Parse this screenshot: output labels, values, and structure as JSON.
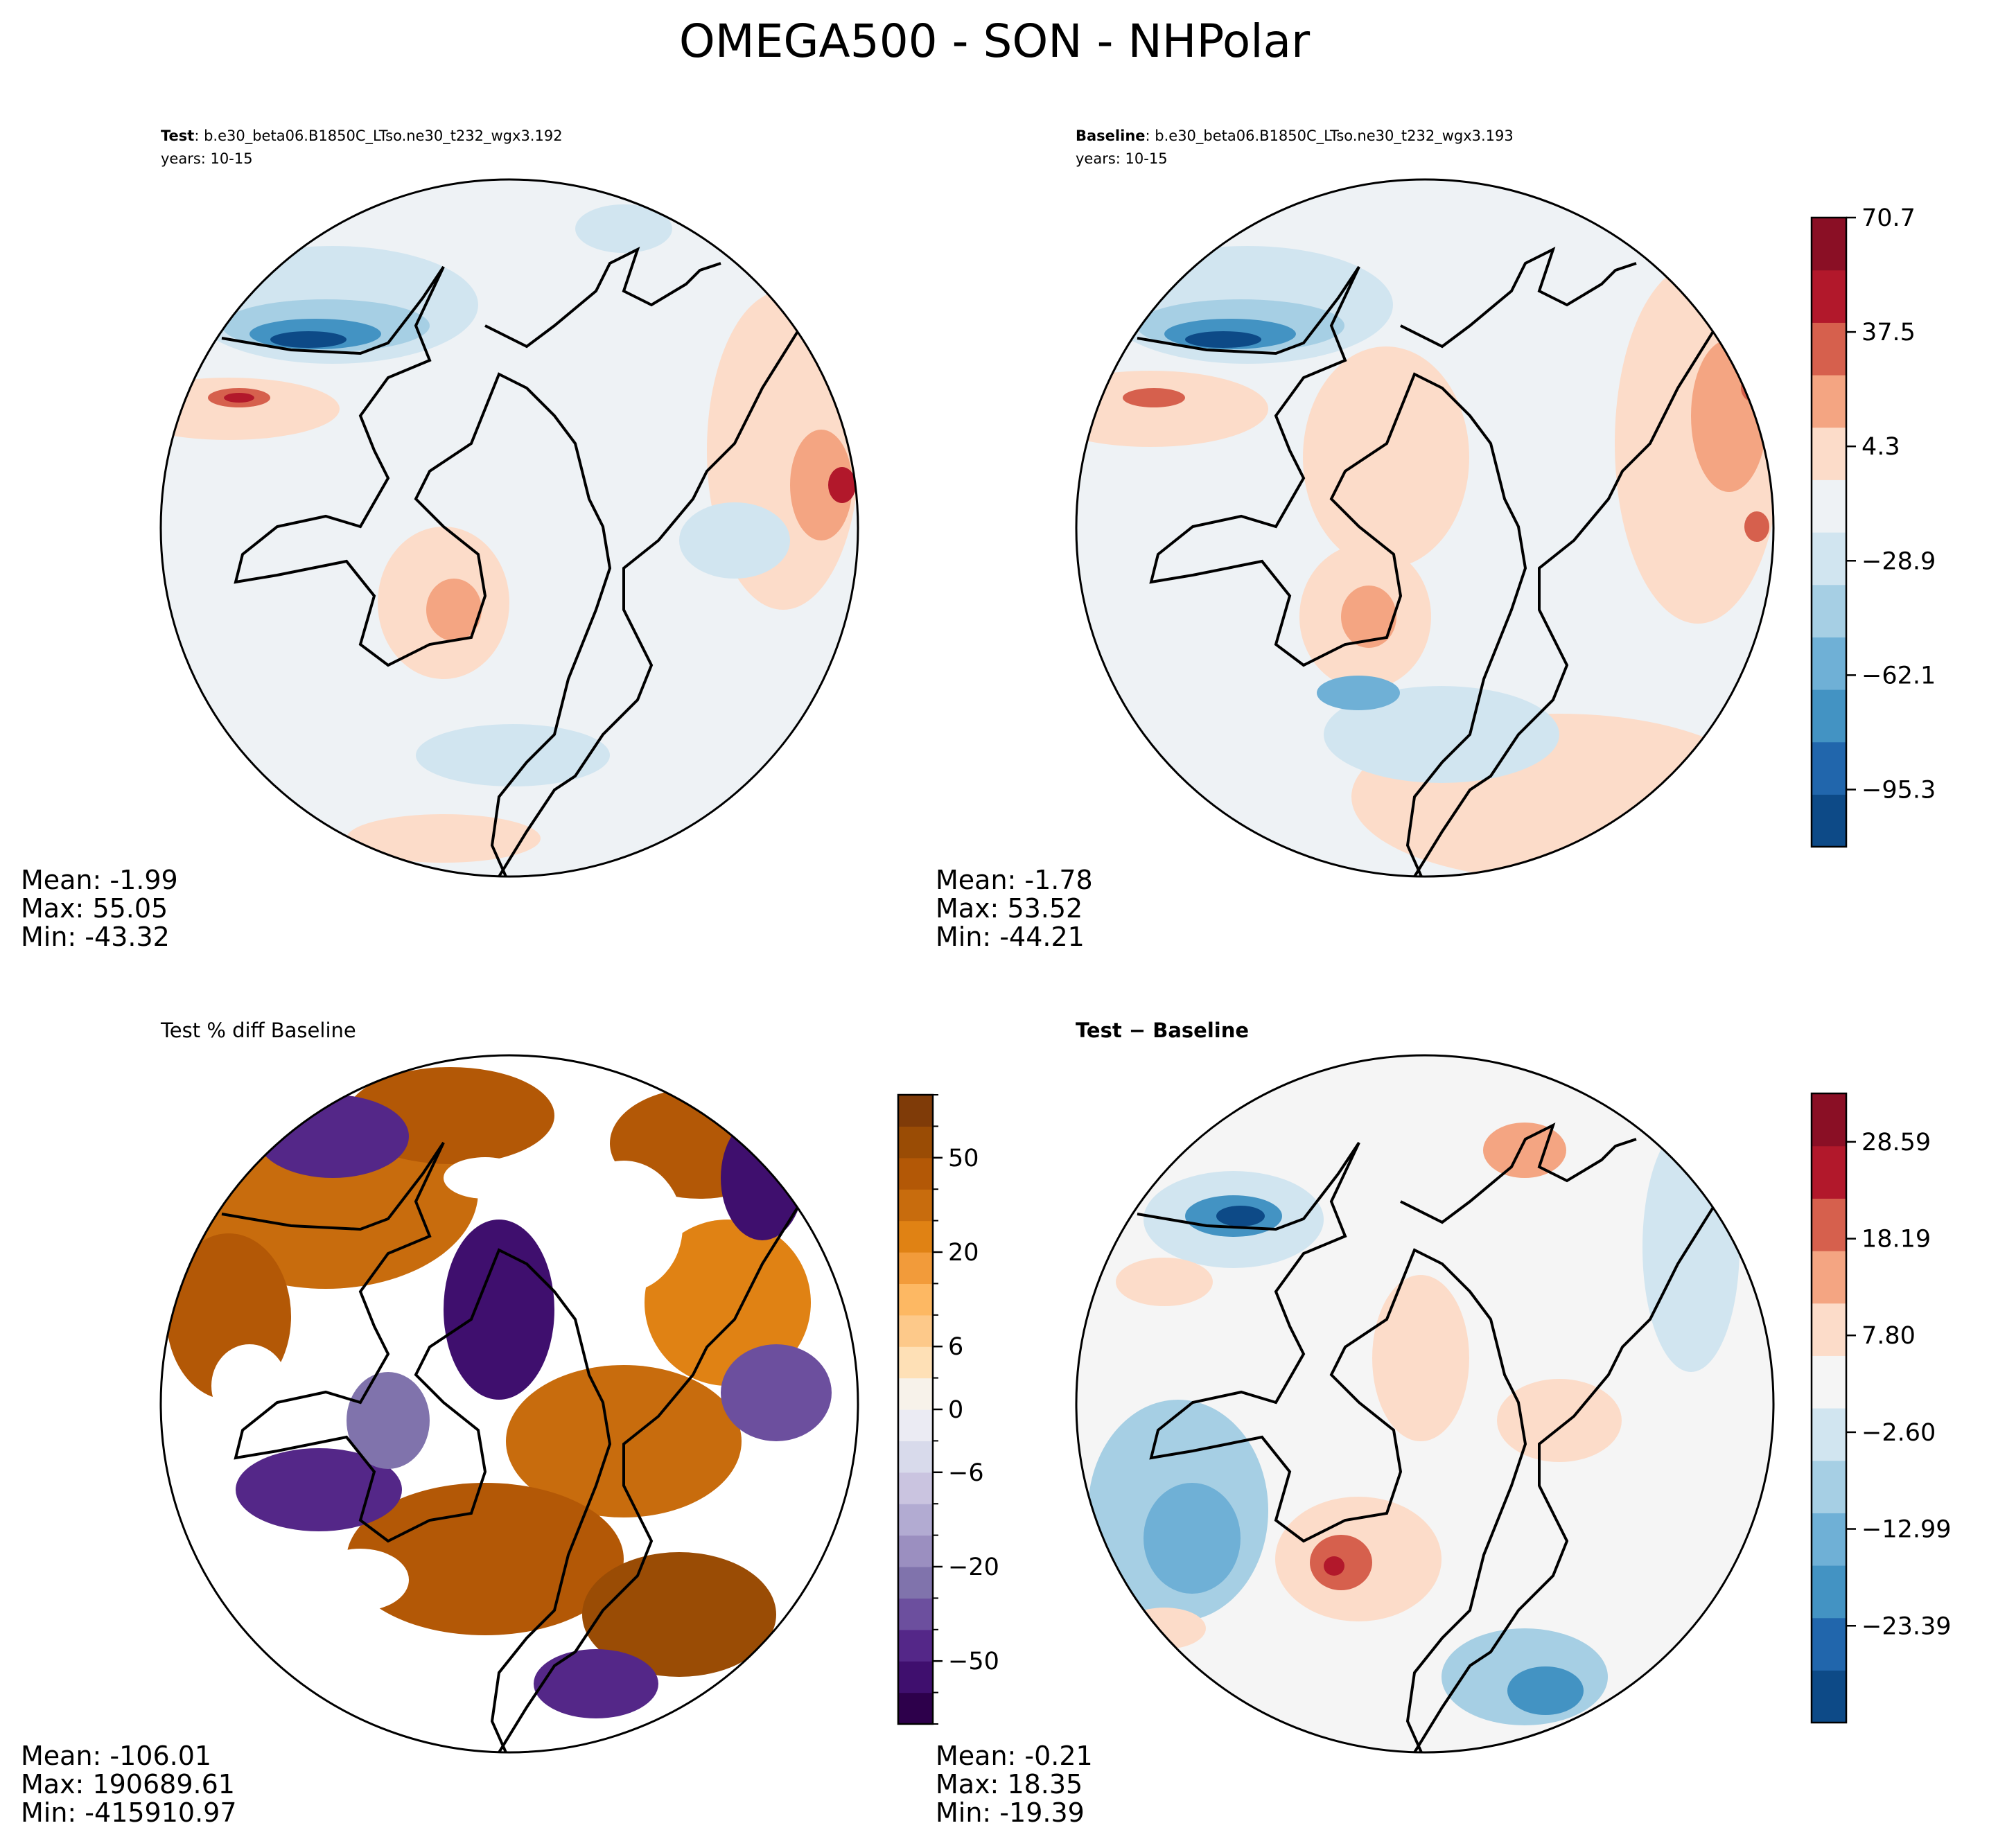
{
  "figure": {
    "title": "OMEGA500 - SON - NHPolar"
  },
  "panels": [
    {
      "id": "test",
      "title_bold": "Test",
      "title_rest": ": b.e30_beta06.B1850C_LTso.ne30_t232_wgx3.192",
      "subtitle": "years: 10-15",
      "stats": {
        "mean": "Mean: -1.99",
        "max": "Max: 55.05",
        "min": "Min: -43.32"
      },
      "palette": "RdBu_r"
    },
    {
      "id": "baseline",
      "title_bold": "Baseline",
      "title_rest": ": b.e30_beta06.B1850C_LTso.ne30_t232_wgx3.193",
      "subtitle": "years: 10-15",
      "stats": {
        "mean": "Mean: -1.78",
        "max": "Max: 53.52",
        "min": "Min: -44.21"
      },
      "palette": "RdBu_r"
    },
    {
      "id": "pctdiff",
      "title_plain": "Test % diff Baseline",
      "stats": {
        "mean": "Mean: -106.01",
        "max": "Max: 190689.61",
        "min": "Min: -415910.97"
      },
      "palette": "PuOr_r"
    },
    {
      "id": "diff",
      "title_bold": "Test − Baseline",
      "stats": {
        "mean": "Mean: -0.21",
        "max": "Max: 18.35",
        "min": "Min: -19.39"
      },
      "palette": "RdBu_r"
    }
  ],
  "chart_data": [
    {
      "type": "heatmap",
      "title": "Test",
      "projection": "north polar stereographic",
      "stats": {
        "mean": -1.99,
        "max": 55.05,
        "min": -43.32
      }
    },
    {
      "type": "heatmap",
      "title": "Baseline",
      "projection": "north polar stereographic",
      "stats": {
        "mean": -1.78,
        "max": 53.52,
        "min": -44.21
      },
      "colorbar": {
        "levels_count": 12,
        "range": [
          -111.9,
          70.7
        ],
        "tick_values": [
          70.7,
          37.5,
          4.3,
          -28.9,
          -62.1,
          -95.3
        ],
        "tick_labels": [
          "70.7",
          "37.5",
          "4.3",
          "−28.9",
          "−62.1",
          "−95.3"
        ],
        "colors": [
          "#0d4a87",
          "#2166ac",
          "#4393c3",
          "#6fb0d6",
          "#a6cfe4",
          "#d1e5f0",
          "#eef2f5",
          "#fcdcc9",
          "#f4a582",
          "#d6604d",
          "#b2182b",
          "#8a0f25"
        ]
      }
    },
    {
      "type": "heatmap",
      "title": "Test % diff Baseline",
      "projection": "north polar stereographic",
      "stats": {
        "mean": -106.01,
        "max": 190689.61,
        "min": -415910.97
      },
      "colorbar": {
        "levels_count": 20,
        "tick_values": [
          50,
          20,
          6,
          0,
          -6,
          -20,
          -50
        ],
        "tick_labels": [
          "50",
          "20",
          "6",
          "0",
          "−6",
          "−20",
          "−50"
        ],
        "colors": [
          "#2d004b",
          "#3f0f6e",
          "#542788",
          "#6c4f9e",
          "#8073ac",
          "#9b8fc0",
          "#b2abd2",
          "#cac4e0",
          "#d8daeb",
          "#ebebf3",
          "#f7f2ea",
          "#fee0b6",
          "#fdc98a",
          "#fdb863",
          "#f29b3a",
          "#e08214",
          "#c86c0d",
          "#b35806",
          "#9a4c05",
          "#7f3b08"
        ]
      }
    },
    {
      "type": "heatmap",
      "title": "Test − Baseline",
      "projection": "north polar stereographic",
      "stats": {
        "mean": -0.21,
        "max": 18.35,
        "min": -19.39
      },
      "colorbar": {
        "levels_count": 12,
        "range": [
          -33.79,
          33.79
        ],
        "tick_values": [
          28.59,
          18.19,
          7.8,
          -2.6,
          -12.99,
          -23.39
        ],
        "tick_labels": [
          "28.59",
          "18.19",
          "7.80",
          "−2.60",
          "−12.99",
          "−23.39"
        ],
        "colors": [
          "#0d4a87",
          "#2166ac",
          "#4393c3",
          "#6fb0d6",
          "#a6cfe4",
          "#d1e5f0",
          "#f5f5f5",
          "#fcdcc9",
          "#f4a582",
          "#d6604d",
          "#b2182b",
          "#8a0f25"
        ]
      }
    }
  ]
}
